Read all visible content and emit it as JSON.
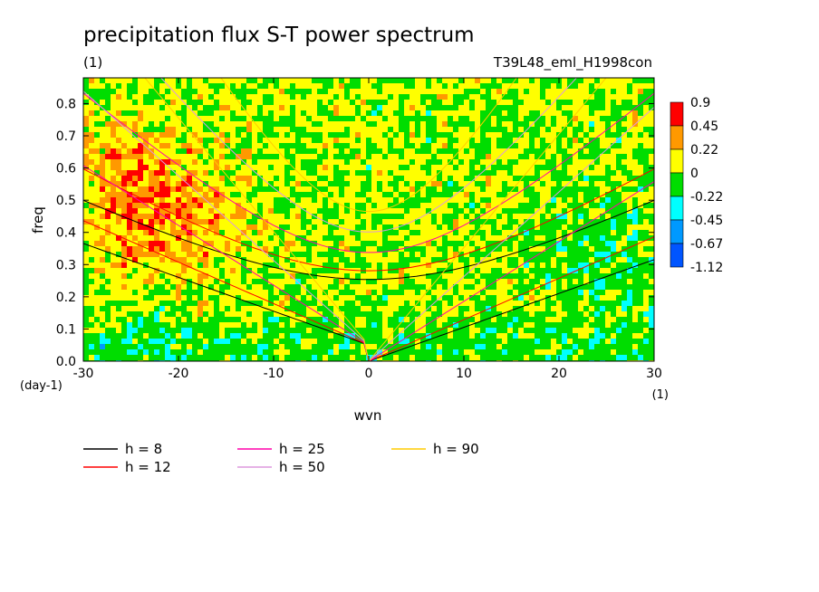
{
  "chart_data": {
    "type": "heatmap",
    "title": "precipitation flux S-T power spectrum",
    "units_label": "(1)",
    "subtitle": "T39L48_eml_H1998con",
    "xlabel": "wvn",
    "ylabel": "freq",
    "x_units": "(1)",
    "y_units": "(day-1)",
    "xlim": [
      -30,
      30
    ],
    "ylim": [
      0,
      0.88
    ],
    "xticks": [
      -30,
      -20,
      -10,
      0,
      10,
      20,
      30
    ],
    "yticks": [
      0.0,
      0.1,
      0.2,
      0.3,
      0.4,
      0.5,
      0.6,
      0.7,
      0.8
    ],
    "colorbar": {
      "levels": [
        "0.9",
        "0.45",
        "0.22",
        "0",
        "-0.22",
        "-0.45",
        "-0.67",
        "-1.12"
      ],
      "colors": [
        "#ff0000",
        "#ff9900",
        "#ffff00",
        "#00dd00",
        "#00ffff",
        "#0099ff",
        "#0055ff"
      ]
    },
    "dispersion_curves": [
      {
        "name": "h =  8",
        "h": 8,
        "color": "#000000"
      },
      {
        "name": "h = 12",
        "h": 12,
        "color": "#ff0000"
      },
      {
        "name": "h = 25",
        "h": 25,
        "color": "#ff00aa"
      },
      {
        "name": "h = 50",
        "h": 50,
        "color": "#dd99dd"
      },
      {
        "name": "h = 90",
        "h": 90,
        "color": "#ffcc00"
      }
    ],
    "grid": false,
    "legend_position": "bottom"
  }
}
